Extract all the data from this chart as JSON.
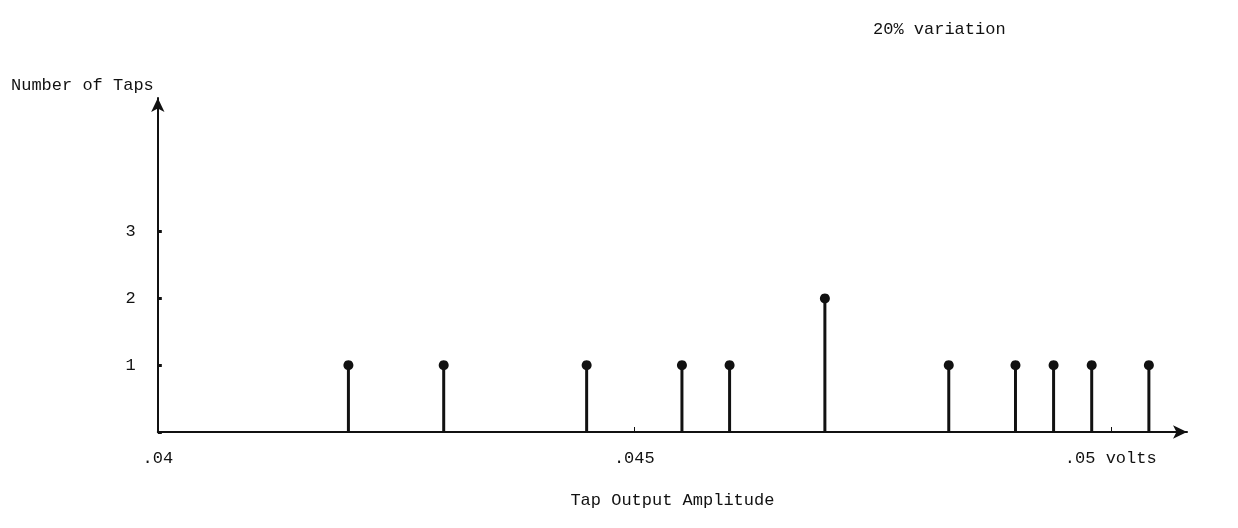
{
  "chart_data": {
    "type": "lollipop",
    "title": "20% variation",
    "xlabel": "Tap Output Amplitude",
    "ylabel": "Number of Taps",
    "x": [
      0.042,
      0.043,
      0.0445,
      0.0455,
      0.046,
      0.047,
      0.0483,
      0.049,
      0.0494,
      0.0498,
      0.0504
    ],
    "values": [
      1,
      1,
      1,
      1,
      1,
      2,
      1,
      1,
      1,
      1,
      1
    ],
    "color": "#111111",
    "marker": "circle",
    "xlim": [
      0.04,
      0.0508
    ],
    "xticks": [
      {
        "value": 0.04,
        "label": ".04"
      },
      {
        "value": 0.045,
        "label": ".045"
      },
      {
        "value": 0.05,
        "label": ".05 volts"
      }
    ],
    "ylim": [
      0,
      5
    ],
    "yticks": [
      {
        "value": 0,
        "label": null
      },
      1,
      2,
      3
    ]
  }
}
